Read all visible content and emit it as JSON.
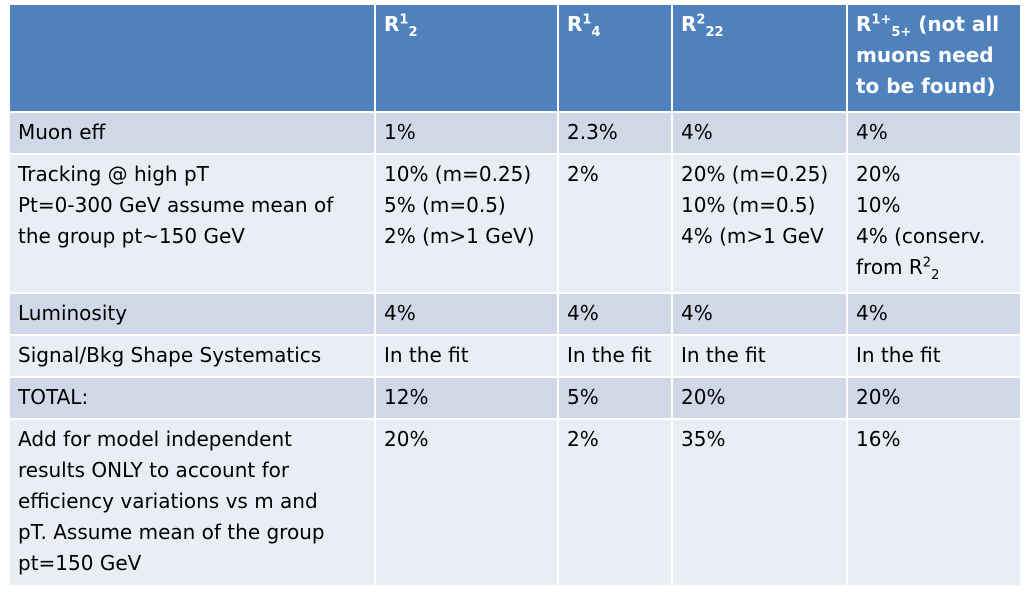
{
  "header": {
    "col0": "",
    "col1": {
      "base": "R",
      "sup": "1",
      "sub": "2"
    },
    "col2": {
      "base": "R",
      "sup": "1",
      "sub": "4"
    },
    "col3": {
      "base": "R",
      "sup": "2",
      "sub": "22"
    },
    "col4": {
      "base": "R",
      "sup": "1+",
      "sub": "5+",
      "rest": " (not all",
      "line2": "muons need",
      "line3": "to be found)"
    }
  },
  "rows": {
    "muon": {
      "label": "Muon eff",
      "c1": "1%",
      "c2": "2.3%",
      "c3": "4%",
      "c4": "4%"
    },
    "tracking": {
      "label": [
        "Tracking @ high pT",
        "Pt=0-300 GeV assume mean of",
        "the group pt~150 GeV"
      ],
      "c1": [
        "10% (m=0.25)",
        "5% (m=0.5)",
        "2% (m>1 GeV)"
      ],
      "c2": [
        "2%"
      ],
      "c3": [
        "20% (m=0.25)",
        "10% (m=0.5)",
        "4% (m>1 GeV"
      ],
      "c4": {
        "l1": "20%",
        "l2": "10%",
        "l3": "4% (conserv.",
        "l4a": "from R",
        "l4sup": "2",
        "l4sub": "2"
      }
    },
    "lumi": {
      "label": "Luminosity",
      "c1": "4%",
      "c2": "4%",
      "c3": "4%",
      "c4": "4%"
    },
    "shape": {
      "label": "Signal/Bkg Shape Systematics",
      "c1": "In the fit",
      "c2": "In the fit",
      "c3": "In the fit",
      "c4": "In the fit"
    },
    "total": {
      "label": "TOTAL:",
      "c1": "12%",
      "c2": "5%",
      "c3": "20%",
      "c4": "20%"
    },
    "model": {
      "label": [
        "Add for model independent",
        "results ONLY to account for",
        "efficiency variations vs m and",
        "pT. Assume mean of the group",
        "pt=150 GeV"
      ],
      "c1": "20%",
      "c2": "2%",
      "c3": "35%",
      "c4": "16%"
    }
  },
  "colors": {
    "header": "#4f81bd",
    "row_odd": "#d0d8e8",
    "row_even": "#e9edf4"
  }
}
